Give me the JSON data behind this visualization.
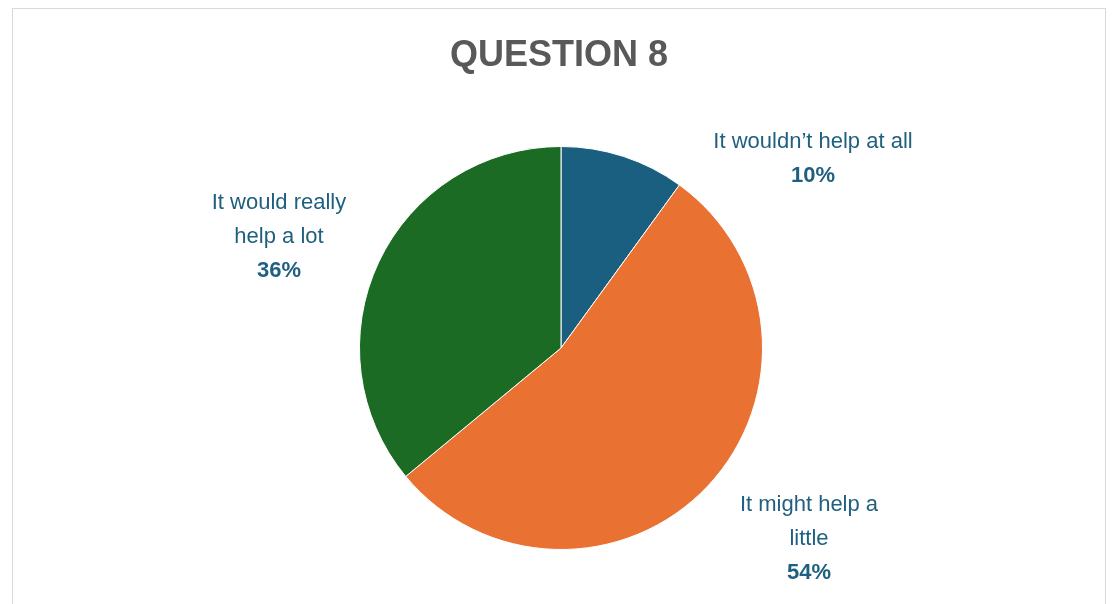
{
  "chart_data": {
    "type": "pie",
    "title": "QUESTION 8",
    "categories": [
      "It wouldn’t help at all",
      "It might help a little",
      "It would really help a lot"
    ],
    "values": [
      10,
      54,
      36
    ],
    "colors": [
      "#1a5e80",
      "#e97132",
      "#1b6b25"
    ],
    "value_labels": [
      "10%",
      "54%",
      "36%"
    ]
  }
}
